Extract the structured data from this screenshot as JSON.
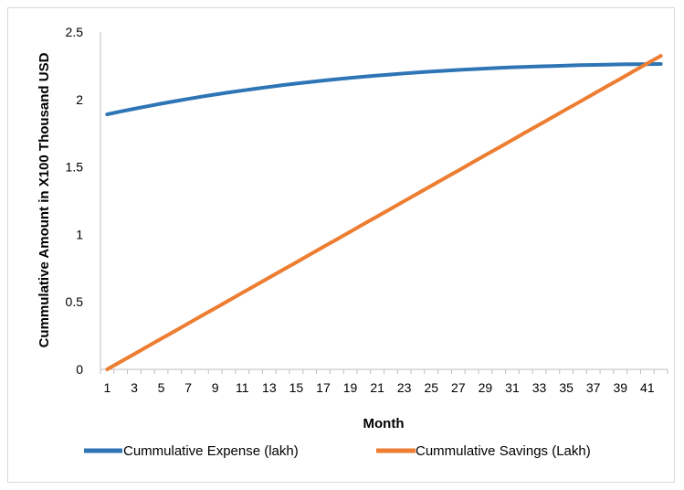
{
  "chart_data": {
    "type": "line",
    "title": "",
    "xlabel": "Month",
    "ylabel": "Cummulative Amount in X100 Thousand USD",
    "x": [
      1,
      2,
      3,
      4,
      5,
      6,
      7,
      8,
      9,
      10,
      11,
      12,
      13,
      14,
      15,
      16,
      17,
      18,
      19,
      20,
      21,
      22,
      23,
      24,
      25,
      26,
      27,
      28,
      29,
      30,
      31,
      32,
      33,
      34,
      35,
      36,
      37,
      38,
      39,
      40,
      41,
      42
    ],
    "x_tick_labels": [
      "1",
      "3",
      "5",
      "7",
      "9",
      "11",
      "13",
      "15",
      "17",
      "19",
      "21",
      "23",
      "25",
      "27",
      "29",
      "31",
      "33",
      "35",
      "37",
      "39",
      "41"
    ],
    "y_tick_labels": [
      "0",
      "0.5",
      "1",
      "1.5",
      "2",
      "2.5"
    ],
    "ylim": [
      0,
      2.5
    ],
    "grid": false,
    "legend_position": "bottom",
    "series": [
      {
        "name": "Cummulative Expense (lakh)",
        "color": "#2E75B6",
        "values": [
          1.89,
          1.911,
          1.931,
          1.95,
          1.969,
          1.987,
          2.004,
          2.021,
          2.037,
          2.052,
          2.066,
          2.08,
          2.093,
          2.106,
          2.118,
          2.129,
          2.14,
          2.15,
          2.16,
          2.169,
          2.177,
          2.185,
          2.193,
          2.2,
          2.207,
          2.213,
          2.219,
          2.224,
          2.229,
          2.234,
          2.238,
          2.242,
          2.245,
          2.248,
          2.251,
          2.254,
          2.256,
          2.258,
          2.26,
          2.261,
          2.262,
          2.263
        ]
      },
      {
        "name": "Cummulative Savings (Lakh)",
        "color": "#ED7D31",
        "values": [
          0.0,
          0.057,
          0.113,
          0.17,
          0.227,
          0.283,
          0.34,
          0.397,
          0.453,
          0.51,
          0.567,
          0.623,
          0.68,
          0.737,
          0.793,
          0.85,
          0.907,
          0.963,
          1.02,
          1.077,
          1.133,
          1.19,
          1.247,
          1.303,
          1.36,
          1.417,
          1.473,
          1.53,
          1.587,
          1.643,
          1.7,
          1.757,
          1.813,
          1.87,
          1.927,
          1.983,
          2.04,
          2.097,
          2.153,
          2.21,
          2.267,
          2.323
        ]
      }
    ]
  }
}
